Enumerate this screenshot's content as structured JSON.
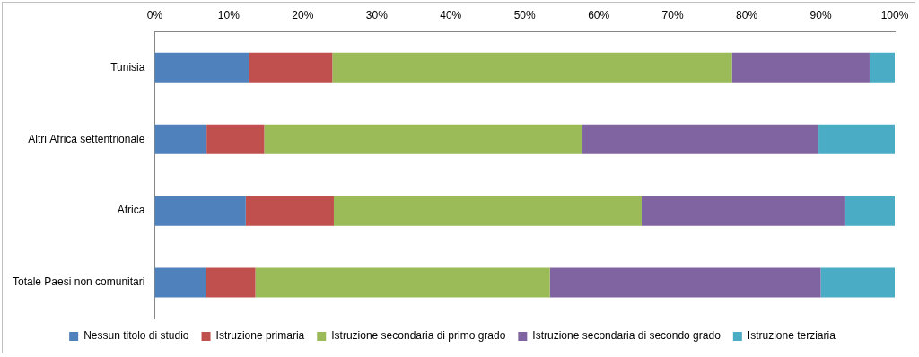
{
  "chart_data": {
    "type": "bar",
    "orientation": "horizontal",
    "stacked": true,
    "grid": false,
    "legend": "bottom",
    "categories": [
      "Tunisia",
      "Altri Africa settentrionale",
      "Africa",
      "Totale Paesi non comunitari"
    ],
    "series": [
      {
        "name": "Nessun titolo di studio",
        "color": "#4f81bd",
        "values": [
          12.8,
          7.0,
          12.3,
          6.9
        ]
      },
      {
        "name": "Istruzione primaria",
        "color": "#c0504d",
        "values": [
          11.2,
          7.8,
          11.9,
          6.7
        ]
      },
      {
        "name": "Istruzione secondaria di primo grado",
        "color": "#9bbb59",
        "values": [
          54.0,
          43.0,
          41.6,
          39.8
        ]
      },
      {
        "name": "Istruzione secondaria di secondo grado",
        "color": "#8064a2",
        "values": [
          18.6,
          31.9,
          27.4,
          36.6
        ]
      },
      {
        "name": "Istruzione terziaria",
        "color": "#4bacc6",
        "values": [
          3.4,
          10.3,
          6.8,
          10.0
        ]
      }
    ],
    "xlim": [
      0,
      100
    ],
    "xticks": [
      {
        "value": 0,
        "label": "0%"
      },
      {
        "value": 10,
        "label": "10%"
      },
      {
        "value": 20,
        "label": "20%"
      },
      {
        "value": 30,
        "label": "30%"
      },
      {
        "value": 40,
        "label": "40%"
      },
      {
        "value": 50,
        "label": "50%"
      },
      {
        "value": 60,
        "label": "60%"
      },
      {
        "value": 70,
        "label": "70%"
      },
      {
        "value": 80,
        "label": "80%"
      },
      {
        "value": 90,
        "label": "90%"
      },
      {
        "value": 100,
        "label": "100%"
      }
    ]
  }
}
